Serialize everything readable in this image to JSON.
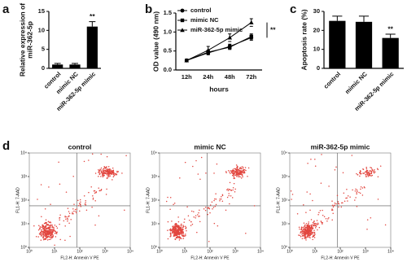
{
  "chart_data": [
    {
      "type": "bar",
      "panel": "a",
      "ylabel": [
        "Relative expression of",
        "miR-362-5p"
      ],
      "categories": [
        "control",
        "mimic NC",
        "miR-362-5p mimic"
      ],
      "values": [
        1,
        1,
        11
      ],
      "errors": [
        0.3,
        0.3,
        1.3
      ],
      "color": "#000000",
      "ylim": [
        0,
        15
      ],
      "yticks": [
        0,
        5,
        10,
        15
      ],
      "annotation": "**"
    },
    {
      "type": "line",
      "panel": "b",
      "ylabel": "OD value (490 nm)",
      "xlabel": "hours",
      "categories": [
        "12h",
        "24h",
        "48h",
        "72h"
      ],
      "series": [
        {
          "name": "control",
          "color": "#000000",
          "marker": "circle",
          "values": [
            0.25,
            0.45,
            0.62,
            0.85
          ],
          "errors": [
            0.03,
            0.05,
            0.06,
            0.07
          ]
        },
        {
          "name": "mimic NC",
          "color": "#000000",
          "marker": "square",
          "values": [
            0.25,
            0.47,
            0.6,
            0.88
          ],
          "errors": [
            0.03,
            0.05,
            0.06,
            0.07
          ]
        },
        {
          "name": "miR-362-5p mimic",
          "color": "#000000",
          "marker": "triangle",
          "values": [
            0.25,
            0.52,
            0.85,
            1.25
          ],
          "errors": [
            0.03,
            0.1,
            0.1,
            0.1
          ]
        }
      ],
      "ylim": [
        0,
        1.5
      ],
      "yticks": [
        {
          "value": 0,
          "label": "0.0"
        },
        {
          "value": 0.5,
          "label": "0.5"
        },
        {
          "value": 1,
          "label": "1.0"
        },
        {
          "value": 1.5,
          "label": "1.5"
        }
      ],
      "annotation": "**"
    },
    {
      "type": "bar",
      "panel": "c",
      "ylabel": "Apoptosis rate (%)",
      "categories": [
        "control",
        "mimic NC",
        "miR-362-5p mimic"
      ],
      "values": [
        25,
        24.5,
        16
      ],
      "errors": [
        2.5,
        3,
        2
      ],
      "color": "#000000",
      "ylim": [
        0,
        30
      ],
      "yticks": [
        0,
        10,
        20,
        30
      ],
      "annotation": "**"
    },
    {
      "type": "flow",
      "panel": "d",
      "titles": [
        "control",
        "mimic NC",
        "miR-362-5p mimic"
      ],
      "xlabel": "FL2-H: Annexin V PE",
      "ylabel": "FL1-H: 7-AAD",
      "color": "#e2463f",
      "log": true,
      "xlim": [
        1,
        10000
      ],
      "ylim": [
        1,
        10000
      ],
      "xticks": [
        {
          "value": 1,
          "label": "10⁰"
        },
        {
          "value": 10,
          "label": "10¹"
        },
        {
          "value": 100,
          "label": "10²"
        },
        {
          "value": 1000,
          "label": "10³"
        },
        {
          "value": 10000,
          "label": "10⁴"
        }
      ],
      "yticks": [
        {
          "value": 1,
          "label": "10⁰"
        },
        {
          "value": 10,
          "label": "10¹"
        },
        {
          "value": 100,
          "label": "10²"
        },
        {
          "value": 1000,
          "label": "10³"
        },
        {
          "value": 10000,
          "label": "10⁴"
        }
      ]
    }
  ]
}
